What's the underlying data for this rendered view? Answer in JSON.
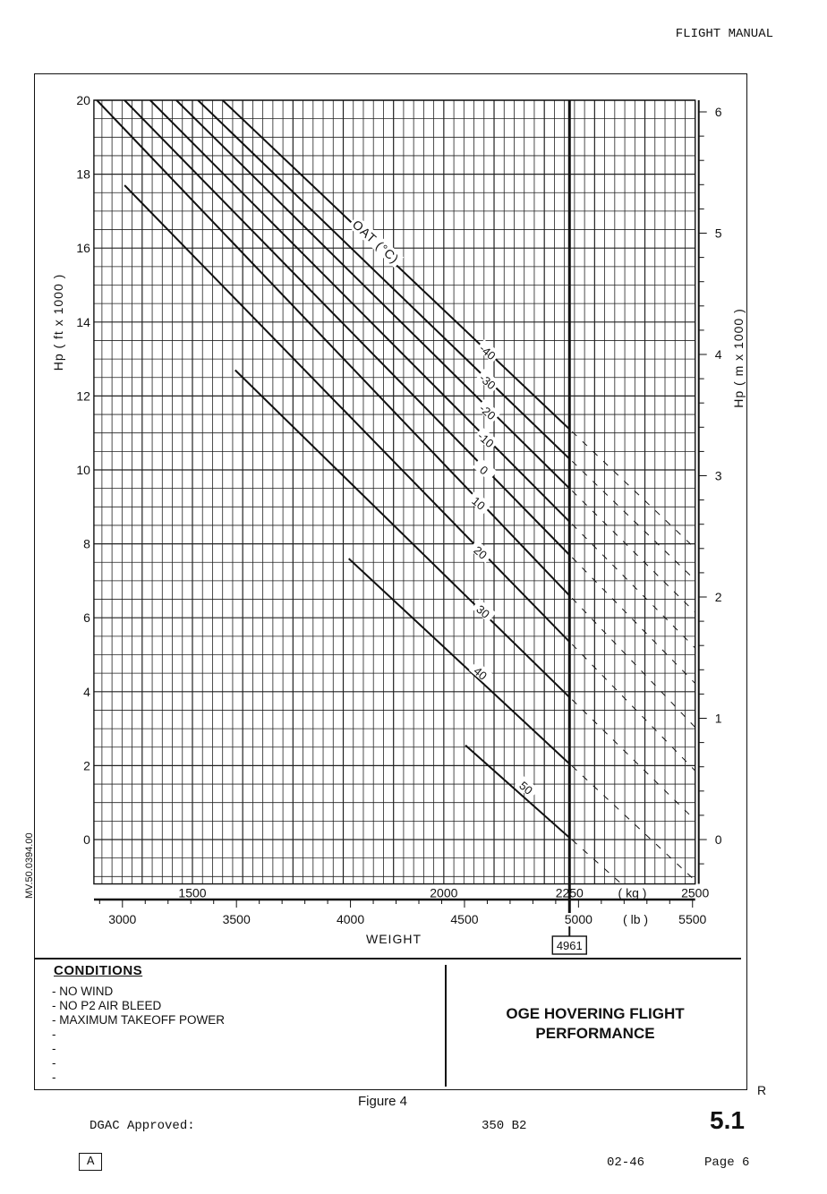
{
  "header": {
    "title": "FLIGHT MANUAL"
  },
  "chart_data": {
    "type": "line",
    "title": "OGE HOVERING FLIGHT PERFORMANCE",
    "xlabel": "WEIGHT",
    "x_unit_primary": "( kg )",
    "x_unit_secondary": "( lb )",
    "ylabel_left": "Hp ( ft x 1000 )",
    "ylabel_right": "Hp ( m x 1000 )",
    "xlim_kg": [
      1304,
      2500
    ],
    "ylim_ft": [
      -1.2,
      20
    ],
    "x_ticks_kg": [
      1500,
      2000,
      2250,
      2500
    ],
    "x_ticks_lb": [
      3000,
      3500,
      4000,
      4500,
      5000,
      5500
    ],
    "y_ticks_ft": [
      0,
      2,
      4,
      6,
      8,
      10,
      12,
      14,
      16,
      18,
      20
    ],
    "y_ticks_m": [
      0,
      1,
      2,
      3,
      4,
      5,
      6
    ],
    "grid": true,
    "max_weight_kg": 2250,
    "max_weight_lb_label": "4961",
    "legend_title": "OAT (°C)",
    "series": [
      {
        "name": "-40",
        "x": [
          1560,
          2250
        ],
        "y": [
          20,
          11.1
        ]
      },
      {
        "name": "-30",
        "x": [
          1511,
          2250
        ],
        "y": [
          20,
          10.3
        ]
      },
      {
        "name": "-20",
        "x": [
          1468,
          2250
        ],
        "y": [
          20,
          9.5
        ]
      },
      {
        "name": "-10",
        "x": [
          1416,
          2250
        ],
        "y": [
          20,
          8.6
        ]
      },
      {
        "name": "0",
        "x": [
          1365,
          2250
        ],
        "y": [
          20,
          7.7
        ]
      },
      {
        "name": "10",
        "x": [
          1310,
          2250
        ],
        "y": [
          20,
          6.6
        ]
      },
      {
        "name": "20",
        "x": [
          1365,
          2250
        ],
        "y": [
          17.7,
          5.35
        ]
      },
      {
        "name": "30",
        "x": [
          1585,
          2250
        ],
        "y": [
          12.7,
          3.85
        ]
      },
      {
        "name": "40",
        "x": [
          1811,
          2250
        ],
        "y": [
          7.6,
          2.05
        ]
      },
      {
        "name": "50",
        "x": [
          2043,
          2250
        ],
        "y": [
          2.55,
          0.05
        ]
      }
    ],
    "extension_style": "dashed beyond 2250 kg"
  },
  "conditions": {
    "title": "CONDITIONS",
    "items": [
      "- NO WIND",
      "- NO P2 AIR BLEED",
      "- MAXIMUM TAKEOFF POWER",
      "-",
      "-",
      "-",
      "-"
    ]
  },
  "footer": {
    "figure": "Figure 4",
    "revision_mark": "R",
    "approval": "DGAC Approved:",
    "model": "350 B2",
    "section": "5.1",
    "revision_box": "A",
    "date": "02-46",
    "page": "Page 6",
    "drawing_code": "MV.50.0394.00"
  }
}
